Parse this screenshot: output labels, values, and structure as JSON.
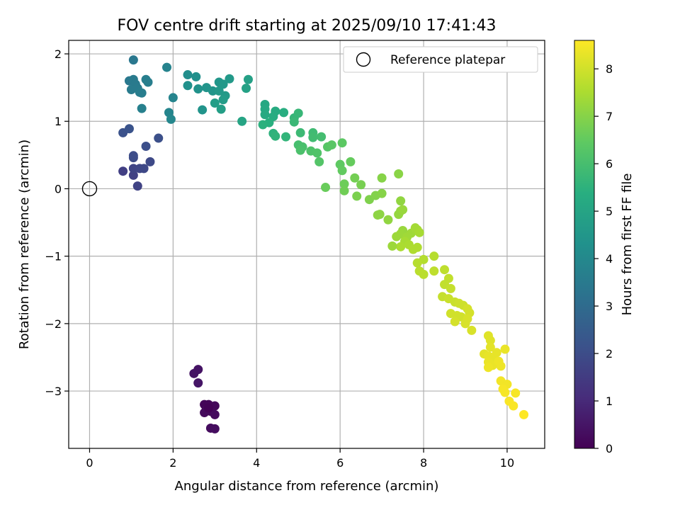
{
  "chart_data": {
    "type": "scatter",
    "title": "FOV centre drift starting at 2025/09/10 17:41:43",
    "xlabel": "Angular distance from reference (arcmin)",
    "ylabel": "Rotation from reference (arcmin)",
    "xlim": [
      -0.5,
      10.9
    ],
    "ylim": [
      -3.85,
      2.2
    ],
    "xticks": [
      0,
      2,
      4,
      6,
      8,
      10
    ],
    "xtick_labels": [
      "0",
      "2",
      "4",
      "6",
      "8",
      "10"
    ],
    "yticks": [
      2,
      1,
      0,
      -1,
      -2,
      -3
    ],
    "ytick_labels": [
      "2",
      "1",
      "0",
      "−1",
      "−2",
      "−3"
    ],
    "grid": true,
    "colormap": "viridis",
    "colorbar": {
      "label": "Hours from first FF file",
      "range": [
        0,
        8.6
      ],
      "ticks": [
        0,
        1,
        2,
        3,
        4,
        5,
        6,
        7,
        8
      ],
      "tick_labels": [
        "0",
        "1",
        "2",
        "3",
        "4",
        "5",
        "6",
        "7",
        "8"
      ]
    },
    "legend": {
      "position": "top-right",
      "entries": [
        "Reference platepar"
      ]
    },
    "reference_point": {
      "x": 0,
      "y": 0
    },
    "points": [
      {
        "x": 2.6,
        "y": -2.68,
        "h": 0.45
      },
      {
        "x": 2.5,
        "y": -2.74,
        "h": 0.45
      },
      {
        "x": 2.6,
        "y": -2.88,
        "h": 0.5
      },
      {
        "x": 2.75,
        "y": -3.2,
        "h": 0.1
      },
      {
        "x": 2.85,
        "y": -3.2,
        "h": 0.12
      },
      {
        "x": 3.0,
        "y": -3.22,
        "h": 0.15
      },
      {
        "x": 2.8,
        "y": -3.27,
        "h": 0.18
      },
      {
        "x": 2.9,
        "y": -3.3,
        "h": 0.2
      },
      {
        "x": 2.75,
        "y": -3.32,
        "h": 0.22
      },
      {
        "x": 3.0,
        "y": -3.35,
        "h": 0.25
      },
      {
        "x": 2.9,
        "y": -3.55,
        "h": 0.28
      },
      {
        "x": 3.0,
        "y": -3.56,
        "h": 0.3
      },
      {
        "x": 2.85,
        "y": -3.25,
        "h": 0.05
      },
      {
        "x": 0.8,
        "y": 0.26,
        "h": 1.6
      },
      {
        "x": 1.05,
        "y": 0.2,
        "h": 1.65
      },
      {
        "x": 1.15,
        "y": 0.04,
        "h": 1.7
      },
      {
        "x": 1.05,
        "y": 0.3,
        "h": 1.75
      },
      {
        "x": 1.2,
        "y": 0.3,
        "h": 1.8
      },
      {
        "x": 1.3,
        "y": 0.3,
        "h": 1.85
      },
      {
        "x": 1.45,
        "y": 0.4,
        "h": 1.9
      },
      {
        "x": 1.05,
        "y": 0.46,
        "h": 1.95
      },
      {
        "x": 1.05,
        "y": 0.49,
        "h": 2.0
      },
      {
        "x": 1.35,
        "y": 0.63,
        "h": 2.05
      },
      {
        "x": 1.65,
        "y": 0.75,
        "h": 2.1
      },
      {
        "x": 0.8,
        "y": 0.83,
        "h": 2.15
      },
      {
        "x": 0.95,
        "y": 0.89,
        "h": 2.2
      },
      {
        "x": 1.05,
        "y": 1.91,
        "h": 3.4
      },
      {
        "x": 0.95,
        "y": 1.6,
        "h": 3.45
      },
      {
        "x": 1.05,
        "y": 1.62,
        "h": 3.5
      },
      {
        "x": 1.1,
        "y": 1.55,
        "h": 3.5
      },
      {
        "x": 1.0,
        "y": 1.47,
        "h": 3.55
      },
      {
        "x": 1.15,
        "y": 1.49,
        "h": 3.55
      },
      {
        "x": 1.2,
        "y": 1.43,
        "h": 3.6
      },
      {
        "x": 1.25,
        "y": 1.42,
        "h": 3.6
      },
      {
        "x": 1.35,
        "y": 1.62,
        "h": 3.65
      },
      {
        "x": 1.4,
        "y": 1.58,
        "h": 3.65
      },
      {
        "x": 1.25,
        "y": 1.19,
        "h": 3.7
      },
      {
        "x": 1.85,
        "y": 1.8,
        "h": 3.8
      },
      {
        "x": 2.0,
        "y": 1.35,
        "h": 3.85
      },
      {
        "x": 1.9,
        "y": 1.13,
        "h": 3.9
      },
      {
        "x": 1.95,
        "y": 1.03,
        "h": 3.95
      },
      {
        "x": 2.35,
        "y": 1.69,
        "h": 4.2
      },
      {
        "x": 2.55,
        "y": 1.66,
        "h": 4.25
      },
      {
        "x": 2.35,
        "y": 1.53,
        "h": 4.3
      },
      {
        "x": 2.6,
        "y": 1.48,
        "h": 4.35
      },
      {
        "x": 2.8,
        "y": 1.5,
        "h": 4.4
      },
      {
        "x": 2.95,
        "y": 1.45,
        "h": 4.45
      },
      {
        "x": 3.1,
        "y": 1.58,
        "h": 4.5
      },
      {
        "x": 3.2,
        "y": 1.55,
        "h": 4.55
      },
      {
        "x": 3.1,
        "y": 1.45,
        "h": 4.6
      },
      {
        "x": 3.25,
        "y": 1.38,
        "h": 4.65
      },
      {
        "x": 3.2,
        "y": 1.32,
        "h": 4.7
      },
      {
        "x": 3.0,
        "y": 1.27,
        "h": 4.75
      },
      {
        "x": 3.15,
        "y": 1.18,
        "h": 4.8
      },
      {
        "x": 2.7,
        "y": 1.17,
        "h": 4.4
      },
      {
        "x": 3.35,
        "y": 1.63,
        "h": 4.6
      },
      {
        "x": 3.8,
        "y": 1.62,
        "h": 4.85
      },
      {
        "x": 3.75,
        "y": 1.49,
        "h": 4.9
      },
      {
        "x": 3.65,
        "y": 1.0,
        "h": 5.0
      },
      {
        "x": 4.2,
        "y": 1.25,
        "h": 5.1
      },
      {
        "x": 4.2,
        "y": 1.18,
        "h": 5.15
      },
      {
        "x": 4.2,
        "y": 1.1,
        "h": 5.2
      },
      {
        "x": 4.45,
        "y": 1.15,
        "h": 5.25
      },
      {
        "x": 4.4,
        "y": 1.07,
        "h": 5.3
      },
      {
        "x": 4.65,
        "y": 1.13,
        "h": 5.35
      },
      {
        "x": 4.3,
        "y": 0.98,
        "h": 5.4
      },
      {
        "x": 4.15,
        "y": 0.95,
        "h": 5.45
      },
      {
        "x": 4.4,
        "y": 0.82,
        "h": 5.5
      },
      {
        "x": 4.45,
        "y": 0.78,
        "h": 5.55
      },
      {
        "x": 4.7,
        "y": 0.77,
        "h": 5.6
      },
      {
        "x": 4.9,
        "y": 1.05,
        "h": 5.65
      },
      {
        "x": 5.0,
        "y": 1.12,
        "h": 5.7
      },
      {
        "x": 4.9,
        "y": 0.99,
        "h": 5.75
      },
      {
        "x": 5.05,
        "y": 0.83,
        "h": 5.8
      },
      {
        "x": 5.35,
        "y": 0.83,
        "h": 5.85
      },
      {
        "x": 5.35,
        "y": 0.76,
        "h": 5.9
      },
      {
        "x": 5.55,
        "y": 0.77,
        "h": 5.95
      },
      {
        "x": 5.0,
        "y": 0.65,
        "h": 6.0
      },
      {
        "x": 5.1,
        "y": 0.62,
        "h": 6.05
      },
      {
        "x": 5.05,
        "y": 0.57,
        "h": 6.1
      },
      {
        "x": 5.3,
        "y": 0.56,
        "h": 6.15
      },
      {
        "x": 5.45,
        "y": 0.53,
        "h": 6.2
      },
      {
        "x": 5.5,
        "y": 0.4,
        "h": 6.25
      },
      {
        "x": 5.7,
        "y": 0.62,
        "h": 6.3
      },
      {
        "x": 5.8,
        "y": 0.65,
        "h": 6.35
      },
      {
        "x": 6.05,
        "y": 0.68,
        "h": 6.4
      },
      {
        "x": 6.0,
        "y": 0.36,
        "h": 6.45
      },
      {
        "x": 6.05,
        "y": 0.27,
        "h": 6.5
      },
      {
        "x": 6.25,
        "y": 0.4,
        "h": 6.55
      },
      {
        "x": 5.65,
        "y": 0.02,
        "h": 6.6
      },
      {
        "x": 6.1,
        "y": 0.07,
        "h": 6.65
      },
      {
        "x": 6.1,
        "y": -0.03,
        "h": 6.7
      },
      {
        "x": 6.35,
        "y": 0.16,
        "h": 6.75
      },
      {
        "x": 6.5,
        "y": 0.06,
        "h": 6.8
      },
      {
        "x": 6.4,
        "y": -0.11,
        "h": 6.85
      },
      {
        "x": 6.7,
        "y": -0.16,
        "h": 6.9
      },
      {
        "x": 6.85,
        "y": -0.1,
        "h": 6.95
      },
      {
        "x": 7.0,
        "y": -0.07,
        "h": 7.0
      },
      {
        "x": 7.0,
        "y": 0.16,
        "h": 7.0
      },
      {
        "x": 7.4,
        "y": 0.22,
        "h": 7.05
      },
      {
        "x": 6.95,
        "y": -0.38,
        "h": 7.1
      },
      {
        "x": 6.9,
        "y": -0.39,
        "h": 7.1
      },
      {
        "x": 7.15,
        "y": -0.46,
        "h": 7.15
      },
      {
        "x": 7.45,
        "y": -0.18,
        "h": 7.15
      },
      {
        "x": 7.45,
        "y": -0.33,
        "h": 7.2
      },
      {
        "x": 7.4,
        "y": -0.38,
        "h": 7.2
      },
      {
        "x": 7.5,
        "y": -0.31,
        "h": 7.25
      },
      {
        "x": 7.5,
        "y": -0.62,
        "h": 7.25
      },
      {
        "x": 7.45,
        "y": -0.67,
        "h": 7.3
      },
      {
        "x": 7.35,
        "y": -0.71,
        "h": 7.3
      },
      {
        "x": 7.6,
        "y": -0.72,
        "h": 7.35
      },
      {
        "x": 7.7,
        "y": -0.66,
        "h": 7.35
      },
      {
        "x": 7.8,
        "y": -0.58,
        "h": 7.4
      },
      {
        "x": 7.85,
        "y": -0.61,
        "h": 7.4
      },
      {
        "x": 7.9,
        "y": -0.65,
        "h": 7.45
      },
      {
        "x": 7.55,
        "y": -0.78,
        "h": 7.45
      },
      {
        "x": 7.65,
        "y": -0.83,
        "h": 7.5
      },
      {
        "x": 7.45,
        "y": -0.86,
        "h": 7.5
      },
      {
        "x": 7.25,
        "y": -0.85,
        "h": 7.3
      },
      {
        "x": 7.75,
        "y": -0.9,
        "h": 7.55
      },
      {
        "x": 7.85,
        "y": -0.87,
        "h": 7.55
      },
      {
        "x": 8.0,
        "y": -1.05,
        "h": 7.6
      },
      {
        "x": 8.25,
        "y": -1.0,
        "h": 7.65
      },
      {
        "x": 7.85,
        "y": -1.1,
        "h": 7.65
      },
      {
        "x": 7.9,
        "y": -1.22,
        "h": 7.7
      },
      {
        "x": 8.0,
        "y": -1.27,
        "h": 7.7
      },
      {
        "x": 8.25,
        "y": -1.22,
        "h": 7.75
      },
      {
        "x": 8.5,
        "y": -1.2,
        "h": 7.75
      },
      {
        "x": 8.6,
        "y": -1.33,
        "h": 7.8
      },
      {
        "x": 8.5,
        "y": -1.42,
        "h": 7.8
      },
      {
        "x": 8.65,
        "y": -1.48,
        "h": 7.85
      },
      {
        "x": 8.45,
        "y": -1.6,
        "h": 7.85
      },
      {
        "x": 8.6,
        "y": -1.63,
        "h": 7.9
      },
      {
        "x": 8.75,
        "y": -1.68,
        "h": 7.9
      },
      {
        "x": 8.85,
        "y": -1.7,
        "h": 7.95
      },
      {
        "x": 8.95,
        "y": -1.73,
        "h": 7.95
      },
      {
        "x": 8.65,
        "y": -1.85,
        "h": 8.0
      },
      {
        "x": 8.8,
        "y": -1.88,
        "h": 8.0
      },
      {
        "x": 8.9,
        "y": -1.9,
        "h": 8.0
      },
      {
        "x": 8.75,
        "y": -1.97,
        "h": 8.05
      },
      {
        "x": 9.05,
        "y": -1.78,
        "h": 8.05
      },
      {
        "x": 9.1,
        "y": -1.84,
        "h": 8.05
      },
      {
        "x": 9.05,
        "y": -1.93,
        "h": 8.1
      },
      {
        "x": 9.0,
        "y": -2.0,
        "h": 8.1
      },
      {
        "x": 9.15,
        "y": -2.1,
        "h": 8.1
      },
      {
        "x": 9.55,
        "y": -2.18,
        "h": 8.2
      },
      {
        "x": 9.6,
        "y": -2.25,
        "h": 8.2
      },
      {
        "x": 9.6,
        "y": -2.35,
        "h": 8.25
      },
      {
        "x": 9.45,
        "y": -2.45,
        "h": 8.25
      },
      {
        "x": 9.55,
        "y": -2.48,
        "h": 8.3
      },
      {
        "x": 9.65,
        "y": -2.5,
        "h": 8.3
      },
      {
        "x": 9.75,
        "y": -2.43,
        "h": 8.3
      },
      {
        "x": 9.95,
        "y": -2.38,
        "h": 8.35
      },
      {
        "x": 9.55,
        "y": -2.57,
        "h": 8.35
      },
      {
        "x": 9.65,
        "y": -2.62,
        "h": 8.35
      },
      {
        "x": 9.8,
        "y": -2.56,
        "h": 8.4
      },
      {
        "x": 9.85,
        "y": -2.63,
        "h": 8.4
      },
      {
        "x": 9.55,
        "y": -2.65,
        "h": 8.4
      },
      {
        "x": 9.85,
        "y": -2.85,
        "h": 8.45
      },
      {
        "x": 10.0,
        "y": -2.9,
        "h": 8.45
      },
      {
        "x": 9.9,
        "y": -2.97,
        "h": 8.5
      },
      {
        "x": 9.95,
        "y": -3.02,
        "h": 8.5
      },
      {
        "x": 10.2,
        "y": -3.03,
        "h": 8.5
      },
      {
        "x": 10.05,
        "y": -3.15,
        "h": 8.55
      },
      {
        "x": 10.15,
        "y": -3.22,
        "h": 8.55
      },
      {
        "x": 10.4,
        "y": -3.35,
        "h": 8.6
      }
    ]
  }
}
